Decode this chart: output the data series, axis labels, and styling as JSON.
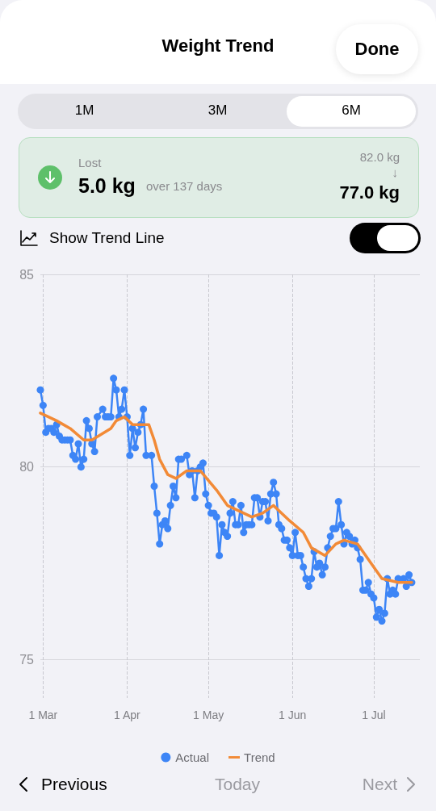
{
  "chart_data": {
    "type": "line",
    "title": "Weight Trend",
    "annotations": [
      "Done",
      "1M",
      "3M",
      "6M",
      "Lost",
      "5.0 kg",
      "over 137 days",
      "82.0 kg",
      "↓",
      "77.0 kg",
      "Show Trend Line",
      "Previous",
      "Today",
      "Next"
    ],
    "xlim": [
      "--02-28",
      "--07-18"
    ],
    "xticks": [
      {
        "value": "--03-01",
        "label": "1 Mar"
      },
      {
        "value": "--04-01",
        "label": "1 Apr"
      },
      {
        "value": "--05-01",
        "label": "1 May"
      },
      {
        "value": "--06-01",
        "label": "1 Jun"
      },
      {
        "value": "--07-01",
        "label": "1 Jul"
      }
    ],
    "ylim": [
      74,
      85
    ],
    "yticks": [
      75,
      80,
      85
    ],
    "grid": true,
    "legend": "bottom",
    "marker": "circle",
    "line_style": "solid",
    "series": [
      {
        "name": "Actual",
        "color": "#3d85f6",
        "x": [
          "--02-28",
          "--03-01",
          "--03-02",
          "--03-03",
          "--03-04",
          "--03-05",
          "--03-06",
          "--03-07",
          "--03-08",
          "--03-09",
          "--03-10",
          "--03-11",
          "--03-12",
          "--03-13",
          "--03-14",
          "--03-15",
          "--03-16",
          "--03-17",
          "--03-18",
          "--03-19",
          "--03-20",
          "--03-21",
          "--03-23",
          "--03-24",
          "--03-25",
          "--03-26",
          "--03-27",
          "--03-28",
          "--03-29",
          "--03-30",
          "--03-31",
          "--04-01",
          "--04-02",
          "--04-03",
          "--04-04",
          "--04-05",
          "--04-06",
          "--04-07",
          "--04-08",
          "--04-10",
          "--04-11",
          "--04-12",
          "--04-13",
          "--04-14",
          "--04-15",
          "--04-16",
          "--04-17",
          "--04-18",
          "--04-19",
          "--04-20",
          "--04-21",
          "--04-23",
          "--04-24",
          "--04-25",
          "--04-26",
          "--04-27",
          "--04-28",
          "--04-29",
          "--04-30",
          "--05-01",
          "--05-02",
          "--05-03",
          "--05-04",
          "--05-05",
          "--05-06",
          "--05-07",
          "--05-08",
          "--05-09",
          "--05-10",
          "--05-11",
          "--05-12",
          "--05-13",
          "--05-14",
          "--05-15",
          "--05-16",
          "--05-17",
          "--05-18",
          "--05-19",
          "--05-20",
          "--05-21",
          "--05-22",
          "--05-23",
          "--05-24",
          "--05-25",
          "--05-26",
          "--05-27",
          "--05-28",
          "--05-29",
          "--05-30",
          "--05-31",
          "--06-01",
          "--06-02",
          "--06-03",
          "--06-04",
          "--06-05",
          "--06-06",
          "--06-07",
          "--06-08",
          "--06-09",
          "--06-10",
          "--06-11",
          "--06-12",
          "--06-13",
          "--06-14",
          "--06-15",
          "--06-16",
          "--06-17",
          "--06-18",
          "--06-19",
          "--06-20",
          "--06-21",
          "--06-22",
          "--06-23",
          "--06-24",
          "--06-25",
          "--06-26",
          "--06-27",
          "--06-28",
          "--06-29",
          "--06-30",
          "--07-01",
          "--07-02",
          "--07-03",
          "--07-04",
          "--07-05",
          "--07-06",
          "--07-07",
          "--07-08",
          "--07-09",
          "--07-10",
          "--07-12",
          "--07-13",
          "--07-14",
          "--07-15"
        ],
        "values": [
          82.0,
          81.6,
          80.9,
          81.0,
          81.0,
          80.9,
          81.1,
          80.8,
          80.7,
          80.7,
          80.7,
          80.7,
          80.3,
          80.2,
          80.6,
          80.0,
          80.2,
          81.2,
          81.0,
          80.6,
          80.4,
          81.3,
          81.5,
          81.3,
          81.3,
          81.3,
          82.3,
          82.0,
          81.3,
          81.5,
          82.0,
          81.3,
          80.3,
          81.0,
          80.5,
          80.9,
          81.1,
          81.5,
          80.3,
          80.3,
          79.5,
          78.8,
          78.0,
          78.5,
          78.6,
          78.4,
          79.0,
          79.5,
          79.2,
          80.2,
          80.2,
          80.3,
          79.8,
          79.9,
          79.2,
          79.9,
          80.0,
          80.1,
          79.3,
          79.0,
          78.8,
          78.8,
          78.7,
          77.7,
          78.5,
          78.3,
          78.2,
          78.8,
          79.1,
          78.5,
          78.5,
          79.0,
          78.3,
          78.5,
          78.5,
          78.5,
          79.2,
          79.2,
          78.7,
          79.1,
          79.1,
          78.6,
          79.3,
          79.6,
          79.3,
          78.5,
          78.4,
          78.1,
          78.1,
          77.9,
          77.7,
          78.3,
          77.7,
          77.7,
          77.4,
          77.1,
          76.9,
          77.1,
          77.8,
          77.4,
          77.5,
          77.2,
          77.4,
          77.9,
          78.2,
          78.4,
          78.4,
          79.1,
          78.5,
          78.0,
          78.3,
          78.2,
          78.0,
          78.1,
          77.9,
          77.6,
          76.8,
          76.8,
          77.0,
          76.7,
          76.6,
          76.1,
          76.3,
          76.0,
          76.2,
          77.1,
          76.7,
          76.8,
          76.7,
          77.1,
          77.1,
          76.9,
          77.2,
          77.0
        ]
      },
      {
        "name": "Trend",
        "color": "#f28a36",
        "marker": "none",
        "x": [
          "--02-28",
          "--03-06",
          "--03-11",
          "--03-16",
          "--03-19",
          "--03-26",
          "--03-28",
          "--03-31",
          "--04-03",
          "--04-06",
          "--04-09",
          "--04-11",
          "--04-13",
          "--04-16",
          "--04-19",
          "--04-23",
          "--04-28",
          "--05-04",
          "--05-08",
          "--05-11",
          "--05-17",
          "--05-21",
          "--05-25",
          "--05-28",
          "--05-31",
          "--06-05",
          "--06-08",
          "--06-13",
          "--06-17",
          "--06-20",
          "--06-25",
          "--06-30",
          "--07-04",
          "--07-10",
          "--07-15"
        ],
        "values": [
          81.4,
          81.2,
          81.0,
          80.7,
          80.7,
          81.0,
          81.2,
          81.3,
          81.1,
          81.1,
          81.1,
          80.7,
          80.2,
          79.8,
          79.7,
          79.9,
          79.9,
          79.4,
          79.0,
          78.9,
          78.7,
          78.8,
          79.0,
          78.8,
          78.6,
          78.3,
          77.9,
          77.7,
          78.0,
          78.1,
          78.0,
          77.5,
          77.1,
          77.0,
          77.0
        ]
      }
    ]
  }
}
